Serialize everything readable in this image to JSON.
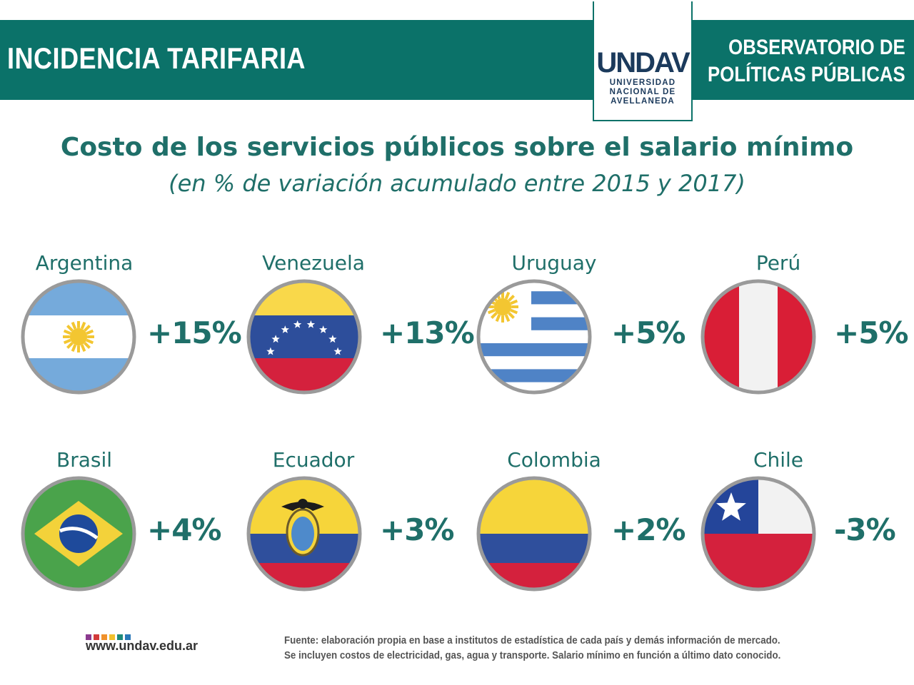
{
  "header": {
    "section_title": "INCIDENCIA TARIFARIA",
    "logo_word": "UNDAV",
    "logo_sub": [
      "UNIVERSIDAD",
      "NACIONAL DE",
      "AVELLANEDA"
    ],
    "observatory": [
      "OBSERVATORIO DE",
      "POLÍTICAS PÚBLICAS"
    ]
  },
  "chart_data": {
    "type": "table",
    "title": "Costo de los servicios públicos sobre el salario mínimo",
    "subtitle": "(en % de variación acumulado entre 2015 y 2017)",
    "categories": [
      "Argentina",
      "Venezuela",
      "Uruguay",
      "Perú",
      "Brasil",
      "Ecuador",
      "Colombia",
      "Chile"
    ],
    "values": [
      15,
      13,
      5,
      5,
      4,
      3,
      2,
      -3
    ],
    "labels": [
      "+15%",
      "+13%",
      "+5%",
      "+5%",
      "+4%",
      "+3%",
      "+2%",
      "-3%"
    ],
    "flag_icons": [
      "argentina-flag-icon",
      "venezuela-flag-icon",
      "uruguay-flag-icon",
      "peru-flag-icon",
      "brazil-flag-icon",
      "ecuador-flag-icon",
      "colombia-flag-icon",
      "chile-flag-icon"
    ]
  },
  "footer": {
    "url": "www.undav.edu.ar",
    "dot_colors": [
      "#8b3a8f",
      "#d23a3a",
      "#f0912b",
      "#f2c12e",
      "#1f8a7a",
      "#2a78b8"
    ],
    "source_lines": [
      "Fuente: elaboración propia en base a institutos de estadística de cada país y demás información de mercado.",
      "Se incluyen costos de electricidad, gas, agua y transporte. Salario mínimo en función a último dato conocido."
    ]
  },
  "colors": {
    "header_bg": "#0b7269",
    "text_teal": "#1f6f69",
    "logo_navy": "#1b3a5c"
  }
}
